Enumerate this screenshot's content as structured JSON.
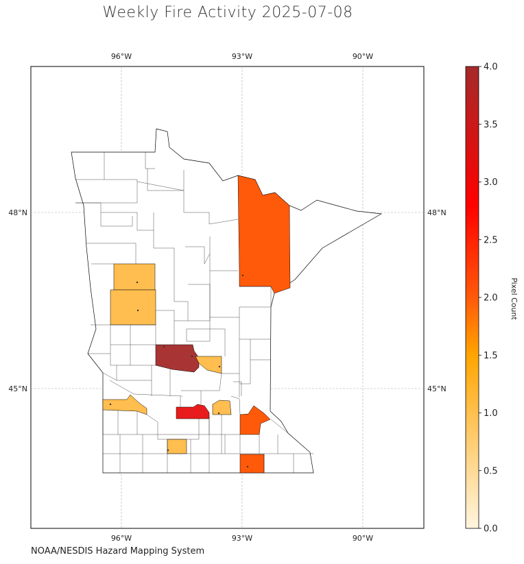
{
  "title": "Weekly Fire Activity 2025-07-08",
  "source": "NOAA/NESDIS Hazard Mapping System",
  "map": {
    "region": "Minnesota",
    "extent_lon": [
      -98.5,
      -88.7
    ],
    "extent_lat": [
      42.7,
      49.3
    ],
    "lon_ticks": [
      "96°W",
      "93°W",
      "90°W"
    ],
    "lat_ticks": [
      "48°N",
      "45°N"
    ],
    "grid": true
  },
  "colorbar": {
    "label": "Pixel Count",
    "range": [
      0,
      4
    ],
    "ticks": [
      "0.0",
      "0.5",
      "1.0",
      "1.5",
      "2.0",
      "2.5",
      "3.0",
      "3.5",
      "4.0"
    ],
    "colors": [
      "#fff5e0",
      "#ffc04d",
      "#ffa500",
      "#ff5a0a",
      "#ff0000",
      "#a52a2a"
    ]
  },
  "fire_counties": [
    {
      "id": "st-louis",
      "value": 2
    },
    {
      "id": "otter-tail-north",
      "value": 1
    },
    {
      "id": "otter-tail-south",
      "value": 1
    },
    {
      "id": "stearns",
      "value": 4
    },
    {
      "id": "sherburne",
      "value": 1
    },
    {
      "id": "lac-qui-parle",
      "value": 1
    },
    {
      "id": "scott-rice",
      "value": 3
    },
    {
      "id": "dakota",
      "value": 1
    },
    {
      "id": "goodhue",
      "value": 2
    },
    {
      "id": "blue-earth",
      "value": 1
    },
    {
      "id": "mower",
      "value": 2
    }
  ]
}
